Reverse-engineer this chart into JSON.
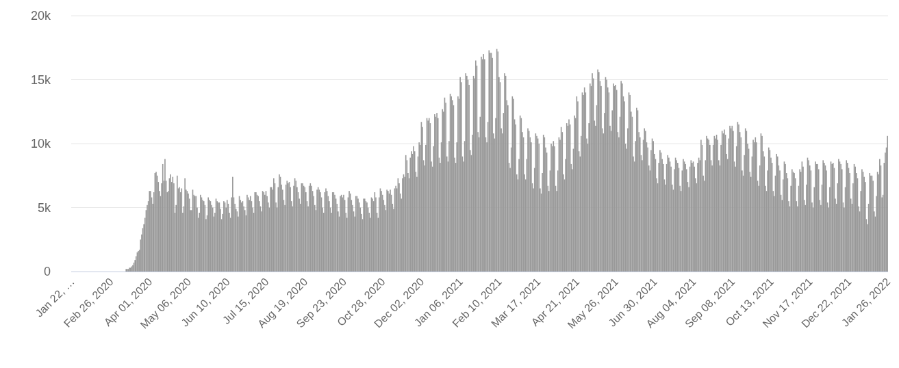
{
  "chart_data": {
    "type": "bar",
    "color": "#999999",
    "grid": "y",
    "ylim": [
      0,
      20
    ],
    "yticks": [
      0,
      {
        "value": 5,
        "label": "5k"
      },
      {
        "value": 10,
        "label": "10k"
      },
      {
        "value": 15,
        "label": "15k"
      },
      {
        "value": 20,
        "label": "20k"
      }
    ],
    "categories": [
      "Jan 22, …",
      null,
      null,
      null,
      null,
      null,
      null,
      null,
      null,
      null,
      null,
      null,
      null,
      null,
      null,
      null,
      null,
      null,
      null,
      null,
      null,
      null,
      null,
      null,
      null,
      null,
      null,
      null,
      null,
      null,
      null,
      null,
      null,
      null,
      null,
      "Feb 26, 2020",
      null,
      null,
      null,
      null,
      null,
      null,
      null,
      null,
      null,
      null,
      null,
      null,
      null,
      null,
      null,
      null,
      null,
      null,
      null,
      null,
      null,
      null,
      null,
      null,
      null,
      null,
      null,
      null,
      null,
      null,
      null,
      null,
      null,
      null,
      "Apr 01, 2020",
      null,
      null,
      null,
      null,
      null,
      null,
      null,
      null,
      null,
      null,
      null,
      null,
      null,
      null,
      null,
      null,
      null,
      null,
      null,
      null,
      null,
      null,
      null,
      null,
      null,
      null,
      null,
      null,
      null,
      null,
      null,
      null,
      null,
      null,
      "May 06, 2020",
      null,
      null,
      null,
      null,
      null,
      null,
      null,
      null,
      null,
      null,
      null,
      null,
      null,
      null,
      null,
      null,
      null,
      null,
      null,
      null,
      null,
      null,
      null,
      null,
      null,
      null,
      null,
      null,
      null,
      null,
      null,
      null,
      null,
      null,
      "Jun 10, 2020",
      null,
      null,
      null,
      null,
      null,
      null,
      null,
      null,
      null,
      null,
      null,
      null,
      null,
      null,
      null,
      null,
      null,
      null,
      null,
      null,
      null,
      null,
      null,
      null,
      null,
      null,
      null,
      null,
      null,
      null,
      null,
      null,
      null,
      null,
      "Jul 15, 2020",
      null,
      null,
      null,
      null,
      null,
      null,
      null,
      null,
      null,
      null,
      null,
      null,
      null,
      null,
      null,
      null,
      null,
      null,
      null,
      null,
      null,
      null,
      null,
      null,
      null,
      null,
      null,
      null,
      null,
      null,
      null,
      null,
      null,
      null,
      "Aug 19, 2020",
      null,
      null,
      null,
      null,
      null,
      null,
      null,
      null,
      null,
      null,
      null,
      null,
      null,
      null,
      null,
      null,
      null,
      null,
      null,
      null,
      null,
      null,
      null,
      null,
      null,
      null,
      null,
      null,
      null,
      null,
      null,
      null,
      null,
      null,
      "Sep 23, 2020",
      null,
      null,
      null,
      null,
      null,
      null,
      null,
      null,
      null,
      null,
      null,
      null,
      null,
      null,
      null,
      null,
      null,
      null,
      null,
      null,
      null,
      null,
      null,
      null,
      null,
      null,
      null,
      null,
      null,
      null,
      null,
      null,
      null,
      null,
      "Oct 28, 2020",
      null,
      null,
      null,
      null,
      null,
      null,
      null,
      null,
      null,
      null,
      null,
      null,
      null,
      null,
      null,
      null,
      null,
      null,
      null,
      null,
      null,
      null,
      null,
      null,
      null,
      null,
      null,
      null,
      null,
      null,
      null,
      null,
      null,
      null,
      "Dec 02, 2020",
      null,
      null,
      null,
      null,
      null,
      null,
      null,
      null,
      null,
      null,
      null,
      null,
      null,
      null,
      null,
      null,
      null,
      null,
      null,
      null,
      null,
      null,
      null,
      null,
      null,
      null,
      null,
      null,
      null,
      null,
      null,
      null,
      null,
      null,
      "Jan 06, 2021",
      null,
      null,
      null,
      null,
      null,
      null,
      null,
      null,
      null,
      null,
      null,
      null,
      null,
      null,
      null,
      null,
      null,
      null,
      null,
      null,
      null,
      null,
      null,
      null,
      null,
      null,
      null,
      null,
      null,
      null,
      null,
      null,
      null,
      null,
      "Feb 10, 2021",
      null,
      null,
      null,
      null,
      null,
      null,
      null,
      null,
      null,
      null,
      null,
      null,
      null,
      null,
      null,
      null,
      null,
      null,
      null,
      null,
      null,
      null,
      null,
      null,
      null,
      null,
      null,
      null,
      null,
      null,
      null,
      null,
      null,
      null,
      "Mar 17, 2021",
      null,
      null,
      null,
      null,
      null,
      null,
      null,
      null,
      null,
      null,
      null,
      null,
      null,
      null,
      null,
      null,
      null,
      null,
      null,
      null,
      null,
      null,
      null,
      null,
      null,
      null,
      null,
      null,
      null,
      null,
      null,
      null,
      null,
      null,
      "Apr 21, 2021",
      null,
      null,
      null,
      null,
      null,
      null,
      null,
      null,
      null,
      null,
      null,
      null,
      null,
      null,
      null,
      null,
      null,
      null,
      null,
      null,
      null,
      null,
      null,
      null,
      null,
      null,
      null,
      null,
      null,
      null,
      null,
      null,
      null,
      null,
      "May 26, 2021",
      null,
      null,
      null,
      null,
      null,
      null,
      null,
      null,
      null,
      null,
      null,
      null,
      null,
      null,
      null,
      null,
      null,
      null,
      null,
      null,
      null,
      null,
      null,
      null,
      null,
      null,
      null,
      null,
      null,
      null,
      null,
      null,
      null,
      null,
      "Jun 30, 2021",
      null,
      null,
      null,
      null,
      null,
      null,
      null,
      null,
      null,
      null,
      null,
      null,
      null,
      null,
      null,
      null,
      null,
      null,
      null,
      null,
      null,
      null,
      null,
      null,
      null,
      null,
      null,
      null,
      null,
      null,
      null,
      null,
      null,
      null,
      "Aug 04, 2021",
      null,
      null,
      null,
      null,
      null,
      null,
      null,
      null,
      null,
      null,
      null,
      null,
      null,
      null,
      null,
      null,
      null,
      null,
      null,
      null,
      null,
      null,
      null,
      null,
      null,
      null,
      null,
      null,
      null,
      null,
      null,
      null,
      null,
      null,
      "Sep 08, 2021",
      null,
      null,
      null,
      null,
      null,
      null,
      null,
      null,
      null,
      null,
      null,
      null,
      null,
      null,
      null,
      null,
      null,
      null,
      null,
      null,
      null,
      null,
      null,
      null,
      null,
      null,
      null,
      null,
      null,
      null,
      null,
      null,
      null,
      null,
      "Oct 13, 2021",
      null,
      null,
      null,
      null,
      null,
      null,
      null,
      null,
      null,
      null,
      null,
      null,
      null,
      null,
      null,
      null,
      null,
      null,
      null,
      null,
      null,
      null,
      null,
      null,
      null,
      null,
      null,
      null,
      null,
      null,
      null,
      null,
      null,
      null,
      "Nov 17, 2021",
      null,
      null,
      null,
      null,
      null,
      null,
      null,
      null,
      null,
      null,
      null,
      null,
      null,
      null,
      null,
      null,
      null,
      null,
      null,
      null,
      null,
      null,
      null,
      null,
      null,
      null,
      null,
      null,
      null,
      null,
      null,
      null,
      null,
      null,
      "Dec 22, 2021",
      null,
      null,
      null,
      null,
      null,
      null,
      null,
      null,
      null,
      null,
      null,
      null,
      null,
      null,
      null,
      null,
      null,
      null,
      null,
      null,
      null,
      null,
      null,
      null,
      null,
      null,
      null,
      null,
      null,
      null,
      null,
      null,
      null,
      null,
      "Jan 26, 2022"
    ],
    "values": [
      0,
      0,
      0,
      0,
      0,
      0,
      0,
      0,
      0,
      0,
      0,
      0,
      0,
      0,
      0,
      0,
      0,
      0,
      0,
      0,
      0,
      0,
      0,
      0,
      0,
      0,
      0,
      0,
      0,
      0,
      0,
      0,
      0,
      0,
      0,
      0,
      0,
      0,
      0,
      0,
      0,
      0,
      0,
      0,
      0,
      0,
      0,
      0,
      0,
      0.2,
      0.2,
      0.2,
      0.3,
      0.3,
      0.4,
      0.5,
      0.7,
      0.9,
      1.2,
      1.5,
      1.6,
      1.7,
      2.5,
      2.9,
      3.4,
      3.7,
      4.2,
      4.8,
      5.2,
      5.5,
      6.3,
      6.3,
      5.8,
      5.3,
      6.2,
      7.7,
      7.8,
      7.5,
      7.0,
      6.3,
      5.9,
      6.9,
      8.4,
      7.1,
      8.8,
      7.1,
      6.2,
      6.3,
      7.3,
      7.6,
      7.0,
      7.4,
      6.9,
      4.6,
      5.2,
      7.5,
      6.5,
      6.6,
      6.2,
      6.5,
      4.6,
      5.1,
      7.3,
      6.4,
      6.3,
      6.1,
      5.7,
      4.8,
      4.8,
      6.4,
      6.0,
      5.9,
      5.9,
      5.0,
      4.2,
      4.6,
      6.0,
      5.8,
      5.6,
      5.5,
      5.2,
      4.1,
      4.4,
      5.8,
      5.6,
      5.5,
      5.2,
      5.0,
      4.3,
      4.6,
      5.7,
      5.5,
      5.4,
      5.4,
      4.9,
      4.1,
      4.5,
      5.5,
      5.4,
      5.0,
      5.6,
      5.3,
      4.6,
      4.2,
      5.8,
      7.4,
      5.8,
      5.3,
      4.9,
      4.7,
      4.3,
      5.9,
      5.6,
      5.4,
      5.5,
      5.1,
      4.8,
      4.4,
      6.0,
      5.8,
      5.6,
      5.9,
      5.5,
      5.0,
      4.6,
      6.2,
      6.2,
      6.0,
      5.9,
      5.5,
      5.1,
      4.7,
      6.3,
      6.2,
      6.0,
      6.3,
      5.9,
      5.4,
      5.0,
      6.6,
      6.6,
      6.4,
      7.3,
      6.9,
      5.4,
      5.0,
      6.6,
      7.6,
      7.4,
      6.8,
      6.4,
      5.6,
      5.2,
      6.8,
      7.1,
      6.9,
      7.0,
      6.6,
      5.5,
      5.1,
      6.7,
      7.3,
      7.1,
      6.6,
      6.2,
      5.7,
      5.3,
      6.9,
      6.9,
      6.7,
      6.6,
      6.2,
      5.5,
      5.1,
      6.7,
      6.9,
      6.7,
      6.3,
      5.9,
      5.2,
      4.8,
      6.4,
      6.6,
      6.4,
      6.2,
      5.8,
      5.0,
      4.6,
      6.2,
      6.5,
      6.3,
      5.9,
      5.5,
      5.0,
      4.6,
      6.2,
      6.2,
      6.0,
      5.7,
      5.3,
      4.7,
      4.3,
      5.9,
      6.0,
      5.8,
      6.0,
      5.6,
      4.6,
      4.2,
      5.8,
      6.3,
      6.1,
      5.6,
      5.2,
      4.7,
      4.3,
      5.9,
      5.9,
      5.7,
      5.4,
      5.0,
      4.5,
      4.1,
      5.7,
      5.7,
      5.5,
      5.4,
      5.0,
      4.6,
      4.2,
      5.8,
      5.7,
      5.5,
      6.2,
      5.8,
      4.6,
      4.2,
      5.8,
      6.5,
      6.3,
      6.0,
      5.6,
      5.2,
      4.8,
      6.4,
      6.3,
      6.1,
      6.4,
      6.0,
      5.3,
      4.9,
      6.5,
      6.7,
      6.5,
      7.3,
      6.9,
      6.1,
      5.7,
      7.3,
      7.6,
      7.4,
      9.1,
      8.7,
      7.7,
      7.3,
      8.9,
      9.4,
      9.2,
      9.8,
      9.4,
      7.8,
      7.4,
      9.0,
      10.1,
      9.9,
      11.7,
      11.3,
      8.7,
      8.3,
      9.9,
      12.0,
      11.8,
      12.0,
      11.6,
      8.6,
      8.2,
      9.8,
      12.3,
      12.1,
      12.4,
      12.0,
      8.9,
      8.5,
      10.1,
      12.7,
      12.5,
      13.6,
      13.2,
      9.0,
      8.6,
      10.2,
      13.9,
      13.7,
      13.4,
      13.0,
      8.9,
      8.5,
      10.1,
      13.7,
      13.5,
      15.2,
      14.8,
      9.0,
      8.6,
      10.2,
      15.5,
      15.3,
      15.0,
      14.6,
      9.5,
      9.1,
      10.7,
      15.3,
      15.1,
      16.5,
      16.1,
      10.9,
      10.5,
      12.1,
      16.8,
      16.6,
      17.0,
      16.6,
      10.5,
      10.1,
      11.7,
      17.3,
      17.1,
      17.1,
      16.7,
      10.8,
      10.4,
      12.0,
      17.4,
      17.2,
      15.2,
      14.8,
      11.2,
      10.8,
      12.4,
      15.5,
      15.3,
      13.4,
      13.0,
      8.5,
      8.1,
      9.7,
      13.7,
      13.5,
      11.9,
      11.5,
      7.6,
      7.2,
      8.8,
      12.2,
      12.0,
      10.9,
      10.5,
      7.6,
      7.2,
      8.8,
      11.2,
      11.0,
      10.5,
      10.1,
      6.9,
      6.5,
      8.1,
      10.8,
      10.6,
      10.4,
      10.0,
      6.5,
      6.1,
      7.7,
      10.7,
      10.5,
      9.7,
      9.3,
      6.7,
      6.3,
      7.9,
      10.0,
      9.8,
      10.2,
      9.8,
      6.7,
      6.3,
      7.9,
      10.5,
      10.3,
      11.3,
      10.9,
      7.6,
      7.2,
      8.8,
      11.6,
      11.4,
      11.9,
      11.5,
      8.4,
      8.0,
      9.6,
      12.2,
      12.0,
      13.7,
      13.3,
      9.4,
      9.0,
      10.6,
      14.0,
      13.8,
      14.4,
      14.0,
      10.4,
      10.0,
      11.6,
      14.7,
      14.5,
      15.5,
      15.1,
      11.8,
      11.4,
      13.0,
      15.8,
      15.6,
      14.9,
      14.5,
      11.2,
      10.8,
      12.4,
      15.2,
      15.0,
      14.4,
      14.0,
      11.4,
      11.0,
      12.6,
      14.7,
      14.5,
      14.6,
      14.2,
      10.9,
      10.5,
      12.1,
      14.9,
      14.7,
      13.7,
      13.3,
      10.0,
      9.6,
      11.2,
      14.0,
      13.8,
      12.5,
      12.1,
      9.0,
      8.6,
      10.2,
      12.8,
      12.6,
      10.9,
      10.5,
      9.1,
      8.7,
      10.3,
      11.2,
      11.0,
      10.1,
      9.7,
      8.3,
      7.9,
      9.5,
      10.4,
      10.2,
      9.2,
      8.8,
      7.3,
      6.9,
      8.5,
      9.5,
      9.3,
      8.8,
      8.4,
      7.2,
      6.8,
      8.4,
      9.1,
      8.9,
      8.6,
      8.2,
      6.8,
      6.4,
      8.0,
      8.9,
      8.7,
      8.5,
      8.1,
      6.7,
      6.3,
      7.9,
      8.8,
      8.6,
      8.4,
      8.0,
      7.0,
      6.6,
      8.2,
      8.7,
      8.5,
      8.6,
      8.2,
      7.3,
      6.9,
      8.5,
      8.9,
      8.7,
      10.3,
      9.9,
      7.5,
      7.1,
      8.7,
      10.6,
      10.4,
      10.3,
      9.9,
      8.7,
      8.3,
      9.9,
      10.6,
      10.4,
      10.7,
      10.3,
      8.7,
      8.3,
      9.9,
      11.0,
      10.8,
      11.1,
      10.7,
      9.2,
      8.8,
      10.4,
      11.4,
      11.2,
      11.4,
      11.0,
      8.6,
      8.2,
      9.8,
      11.7,
      11.5,
      10.9,
      10.5,
      7.9,
      7.5,
      9.1,
      11.2,
      11.0,
      10.0,
      9.6,
      7.8,
      7.4,
      9.0,
      10.3,
      10.1,
      10.5,
      10.1,
      7.1,
      6.7,
      8.3,
      10.8,
      10.6,
      9.4,
      9.0,
      6.7,
      6.3,
      7.9,
      9.7,
      9.5,
      8.9,
      8.5,
      6.3,
      5.9,
      7.5,
      9.2,
      9.0,
      8.3,
      7.9,
      6.0,
      5.6,
      7.2,
      8.6,
      8.4,
      7.7,
      7.3,
      5.5,
      5.1,
      6.7,
      8.0,
      7.8,
      7.7,
      7.3,
      5.5,
      5.1,
      6.7,
      8.0,
      7.8,
      8.6,
      8.2,
      5.6,
      5.2,
      6.8,
      8.9,
      8.7,
      8.3,
      7.9,
      5.4,
      5.0,
      6.6,
      8.6,
      8.4,
      8.4,
      8.0,
      5.6,
      5.2,
      6.8,
      8.7,
      8.5,
      8.3,
      7.9,
      5.4,
      5.0,
      6.6,
      8.6,
      8.4,
      8.5,
      8.1,
      5.7,
      5.3,
      6.9,
      8.8,
      8.6,
      8.4,
      8.0,
      5.4,
      5.0,
      6.6,
      8.7,
      8.5,
      8.1,
      7.7,
      5.7,
      5.3,
      6.9,
      8.4,
      8.2,
      7.7,
      7.3,
      5.1,
      4.7,
      6.3,
      8.0,
      7.8,
      7.4,
      7.0,
      4.1,
      3.7,
      5.3,
      7.7,
      7.5,
      7.5,
      7.1,
      4.7,
      4.3,
      5.9,
      7.8,
      7.6,
      8.8,
      8.3,
      5.8,
      6.0,
      8.5,
      9.3,
      9.7,
      10.6
    ]
  }
}
